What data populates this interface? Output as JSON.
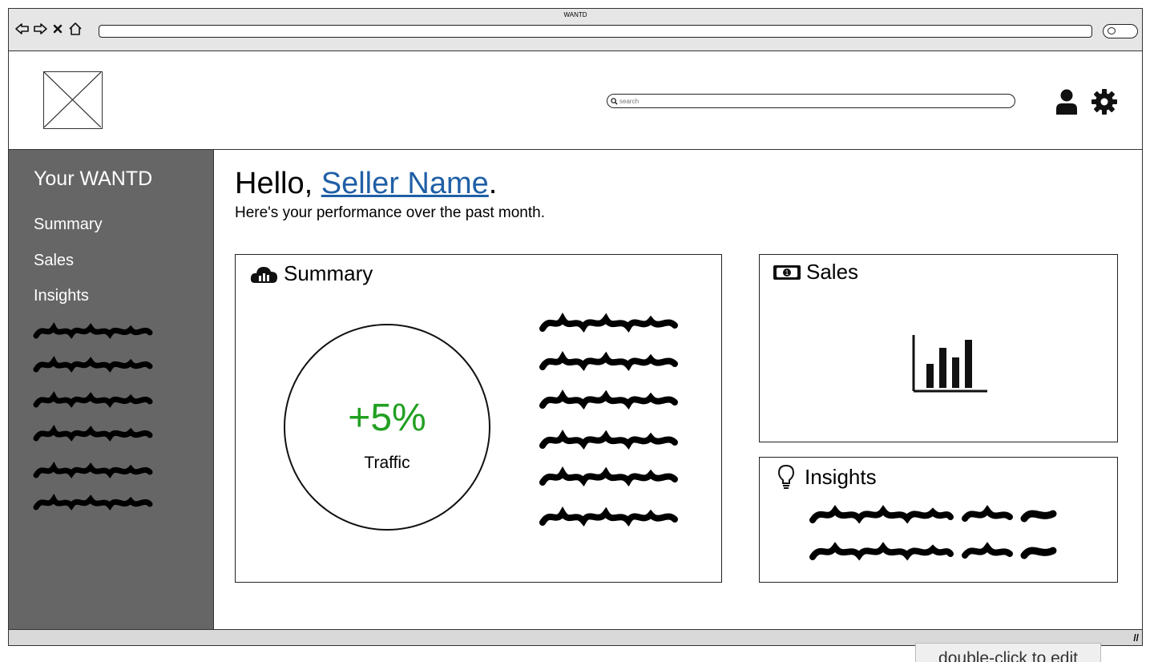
{
  "browser": {
    "title": "WANTD"
  },
  "header": {
    "search_placeholder": "search"
  },
  "sidebar": {
    "title": "Your WANTD",
    "items": [
      {
        "label": "Summary"
      },
      {
        "label": "Sales"
      },
      {
        "label": "Insights"
      }
    ]
  },
  "main": {
    "greeting_prefix": "Hello, ",
    "seller_name": "Seller Name",
    "greeting_suffix": ".",
    "subtitle": "Here's your performance over the past month.",
    "summary": {
      "title": "Summary",
      "metric_value": "+5%",
      "metric_label": "Traffic"
    },
    "sales": {
      "title": "Sales"
    },
    "insights": {
      "title": "Insights"
    }
  },
  "tooltip": {
    "text": "double-click to edit"
  },
  "colors": {
    "sidebar_bg": "#666666",
    "link": "#1f5fa6",
    "metric_positive": "#22a022"
  }
}
